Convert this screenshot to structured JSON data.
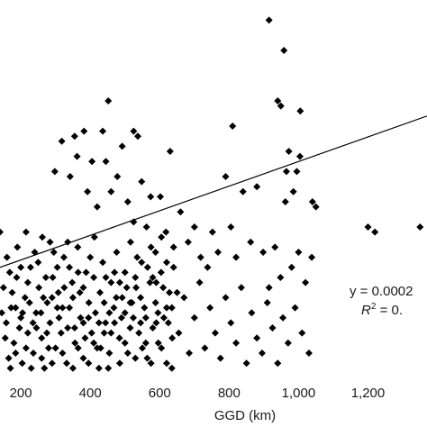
{
  "chart_data": {
    "type": "scatter",
    "title": "",
    "xlabel": "GGD (km)",
    "ylabel": "",
    "x_ticks": [
      {
        "value": 200,
        "label": "200"
      },
      {
        "value": 400,
        "label": "400"
      },
      {
        "value": 600,
        "label": "600"
      },
      {
        "value": 800,
        "label": "800"
      },
      {
        "value": 1000,
        "label": "1,000"
      },
      {
        "value": 1200,
        "label": "1,200"
      }
    ],
    "xlim": [
      140,
      1370
    ],
    "ylim": [
      0,
      75
    ],
    "grid": false,
    "marker": "diamond",
    "marker_color": "#000000",
    "trendline": {
      "x": [
        140,
        1370
      ],
      "y": [
        22,
        52
      ],
      "color": "#000000"
    },
    "annotations": {
      "equation": "y = 0.0002",
      "r_squared_symbol": "R",
      "r_squared_sup": "2",
      "r_squared_rest": " = 0."
    },
    "points": [
      [
        915,
        71
      ],
      [
        958,
        65
      ],
      [
        452,
        55
      ],
      [
        940,
        55
      ],
      [
        949,
        54
      ],
      [
        1005,
        53
      ],
      [
        810,
        50
      ],
      [
        355,
        48
      ],
      [
        382,
        49
      ],
      [
        436,
        49
      ],
      [
        525,
        49
      ],
      [
        537,
        48
      ],
      [
        630,
        45
      ],
      [
        972,
        45
      ],
      [
        1004,
        44
      ],
      [
        995,
        41
      ],
      [
        965,
        41
      ],
      [
        985,
        37
      ],
      [
        1040,
        35
      ],
      [
        1050,
        34
      ],
      [
        1200,
        30
      ],
      [
        1220,
        29
      ],
      [
        1350,
        30
      ],
      [
        140,
        29
      ],
      [
        215,
        29
      ],
      [
        262,
        28
      ],
      [
        284,
        27
      ],
      [
        298,
        41
      ],
      [
        318,
        47
      ],
      [
        342,
        40
      ],
      [
        362,
        44
      ],
      [
        392,
        37
      ],
      [
        405,
        43
      ],
      [
        420,
        34
      ],
      [
        445,
        43
      ],
      [
        460,
        37
      ],
      [
        478,
        40
      ],
      [
        492,
        46
      ],
      [
        508,
        35
      ],
      [
        525,
        31
      ],
      [
        548,
        39
      ],
      [
        562,
        30
      ],
      [
        574,
        36
      ],
      [
        588,
        25
      ],
      [
        602,
        36
      ],
      [
        618,
        29
      ],
      [
        640,
        26
      ],
      [
        660,
        33
      ],
      [
        682,
        27
      ],
      [
        700,
        30
      ],
      [
        718,
        24
      ],
      [
        738,
        22
      ],
      [
        752,
        29
      ],
      [
        768,
        25
      ],
      [
        790,
        40
      ],
      [
        805,
        30
      ],
      [
        820,
        24
      ],
      [
        840,
        37
      ],
      [
        862,
        27
      ],
      [
        880,
        38
      ],
      [
        898,
        25
      ],
      [
        915,
        18
      ],
      [
        932,
        26
      ],
      [
        948,
        20
      ],
      [
        962,
        35
      ],
      [
        980,
        22
      ],
      [
        1000,
        25
      ],
      [
        1020,
        19
      ],
      [
        1038,
        24
      ],
      [
        150,
        18
      ],
      [
        158,
        11
      ],
      [
        165,
        4
      ],
      [
        172,
        14
      ],
      [
        180,
        7
      ],
      [
        188,
        20
      ],
      [
        196,
        10
      ],
      [
        204,
        3
      ],
      [
        212,
        16
      ],
      [
        220,
        9
      ],
      [
        228,
        22
      ],
      [
        236,
        5
      ],
      [
        244,
        13
      ],
      [
        252,
        18
      ],
      [
        260,
        8
      ],
      [
        268,
        2
      ],
      [
        276,
        15
      ],
      [
        284,
        11
      ],
      [
        292,
        20
      ],
      [
        300,
        6
      ],
      [
        308,
        17
      ],
      [
        316,
        9
      ],
      [
        324,
        24
      ],
      [
        332,
        3
      ],
      [
        340,
        14
      ],
      [
        348,
        19
      ],
      [
        356,
        7
      ],
      [
        364,
        26
      ],
      [
        372,
        12
      ],
      [
        380,
        4
      ],
      [
        388,
        21
      ],
      [
        396,
        15
      ],
      [
        404,
        9
      ],
      [
        412,
        28
      ],
      [
        420,
        6
      ],
      [
        428,
        17
      ],
      [
        436,
        23
      ],
      [
        444,
        11
      ],
      [
        452,
        2
      ],
      [
        460,
        19
      ],
      [
        468,
        14
      ],
      [
        476,
        25
      ],
      [
        484,
        8
      ],
      [
        492,
        16
      ],
      [
        500,
        21
      ],
      [
        508,
        5
      ],
      [
        516,
        27
      ],
      [
        524,
        12
      ],
      [
        532,
        18
      ],
      [
        540,
        9
      ],
      [
        548,
        23
      ],
      [
        556,
        14
      ],
      [
        564,
        4
      ],
      [
        572,
        19
      ],
      [
        580,
        10
      ],
      [
        588,
        15
      ],
      [
        596,
        7
      ],
      [
        604,
        21
      ],
      [
        612,
        12
      ],
      [
        620,
        3
      ],
      [
        628,
        17
      ],
      [
        636,
        8
      ],
      [
        160,
        24
      ],
      [
        175,
        17
      ],
      [
        190,
        26
      ],
      [
        205,
        13
      ],
      [
        220,
        19
      ],
      [
        235,
        11
      ],
      [
        250,
        23
      ],
      [
        265,
        16
      ],
      [
        280,
        6
      ],
      [
        295,
        25
      ],
      [
        310,
        12
      ],
      [
        325,
        18
      ],
      [
        340,
        22
      ],
      [
        355,
        10
      ],
      [
        370,
        17
      ],
      [
        385,
        8
      ],
      [
        400,
        24
      ],
      [
        415,
        13
      ],
      [
        430,
        6
      ],
      [
        445,
        20
      ],
      [
        460,
        9
      ],
      [
        475,
        16
      ],
      [
        490,
        12
      ],
      [
        505,
        18
      ],
      [
        520,
        15
      ],
      [
        535,
        24
      ],
      [
        550,
        6
      ],
      [
        565,
        22
      ],
      [
        580,
        20
      ],
      [
        595,
        13
      ],
      [
        610,
        18
      ],
      [
        625,
        11
      ],
      [
        640,
        22
      ],
      [
        655,
        9
      ],
      [
        670,
        16
      ],
      [
        685,
        5
      ],
      [
        700,
        12
      ],
      [
        715,
        19
      ],
      [
        730,
        6
      ],
      [
        745,
        14
      ],
      [
        760,
        9
      ],
      [
        775,
        4
      ],
      [
        790,
        16
      ],
      [
        805,
        11
      ],
      [
        820,
        7
      ],
      [
        835,
        18
      ],
      [
        850,
        3
      ],
      [
        865,
        13
      ],
      [
        880,
        8
      ],
      [
        895,
        5
      ],
      [
        910,
        15
      ],
      [
        925,
        10
      ],
      [
        940,
        3
      ],
      [
        955,
        12
      ],
      [
        970,
        7
      ],
      [
        990,
        14
      ],
      [
        1010,
        9
      ],
      [
        1030,
        5
      ],
      [
        145,
        13
      ],
      [
        168,
        21
      ],
      [
        185,
        14
      ],
      [
        200,
        22
      ],
      [
        225,
        15
      ],
      [
        240,
        25
      ],
      [
        258,
        13
      ],
      [
        272,
        20
      ],
      [
        290,
        16
      ],
      [
        305,
        22
      ],
      [
        320,
        14
      ],
      [
        335,
        27
      ],
      [
        350,
        16
      ],
      [
        365,
        21
      ],
      [
        380,
        18
      ],
      [
        395,
        12
      ],
      [
        410,
        20
      ],
      [
        425,
        11
      ],
      [
        440,
        15
      ],
      [
        455,
        13
      ],
      [
        470,
        21
      ],
      [
        485,
        19
      ],
      [
        500,
        13
      ],
      [
        515,
        10
      ],
      [
        530,
        20
      ],
      [
        545,
        16
      ],
      [
        560,
        12
      ],
      [
        575,
        26
      ],
      [
        590,
        19
      ],
      [
        605,
        28
      ],
      [
        620,
        23
      ],
      [
        635,
        14
      ],
      [
        650,
        17
      ],
      [
        155,
        8
      ],
      [
        170,
        2
      ],
      [
        185,
        5
      ],
      [
        200,
        12
      ],
      [
        215,
        6
      ],
      [
        230,
        2
      ],
      [
        245,
        10
      ],
      [
        260,
        4
      ],
      [
        275,
        9
      ],
      [
        290,
        3
      ],
      [
        305,
        14
      ],
      [
        320,
        5
      ],
      [
        335,
        10
      ],
      [
        350,
        2
      ],
      [
        365,
        6
      ],
      [
        380,
        11
      ],
      [
        395,
        3
      ],
      [
        410,
        7
      ],
      [
        425,
        2
      ],
      [
        440,
        9
      ],
      [
        455,
        5
      ],
      [
        470,
        11
      ],
      [
        485,
        3
      ],
      [
        500,
        7
      ],
      [
        515,
        15
      ],
      [
        530,
        4
      ],
      [
        545,
        11
      ],
      [
        560,
        7
      ],
      [
        575,
        3
      ],
      [
        590,
        11
      ],
      [
        605,
        6
      ],
      [
        620,
        14
      ],
      [
        635,
        2
      ]
    ]
  }
}
